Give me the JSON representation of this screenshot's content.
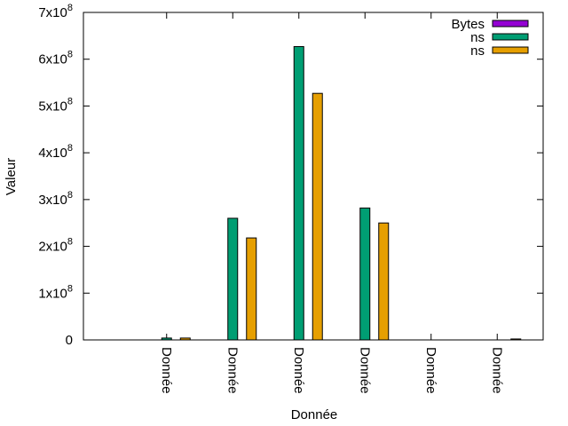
{
  "chart_data": {
    "type": "bar",
    "categories": [
      "Donnée",
      "Donnée",
      "Donnée",
      "Donnée",
      "Donnée",
      "Donnée"
    ],
    "xlabel": "Donnée",
    "ylabel": "Valeur",
    "ylim": [
      0,
      700000000
    ],
    "yticks": [
      {
        "value": 0,
        "mantissa": "0",
        "exponent": ""
      },
      {
        "value": 100000000,
        "mantissa": "1x10",
        "exponent": "8"
      },
      {
        "value": 200000000,
        "mantissa": "2x10",
        "exponent": "8"
      },
      {
        "value": 300000000,
        "mantissa": "3x10",
        "exponent": "8"
      },
      {
        "value": 400000000,
        "mantissa": "4x10",
        "exponent": "8"
      },
      {
        "value": 500000000,
        "mantissa": "5x10",
        "exponent": "8"
      },
      {
        "value": 600000000,
        "mantissa": "6x10",
        "exponent": "8"
      },
      {
        "value": 700000000,
        "mantissa": "7x10",
        "exponent": "8"
      }
    ],
    "grid": false,
    "legend_position": "top-right",
    "series": [
      {
        "name": "Bytes",
        "color": "#9400d3",
        "values": [
          0,
          0,
          0,
          0,
          0,
          0
        ]
      },
      {
        "name": "ns",
        "color": "#009e73",
        "values": [
          4000000,
          260000000,
          627000000,
          282000000,
          0,
          0
        ]
      },
      {
        "name": "ns",
        "color": "#e69f00",
        "values": [
          4000000,
          218000000,
          527000000,
          250000000,
          0,
          2000000
        ]
      }
    ]
  }
}
